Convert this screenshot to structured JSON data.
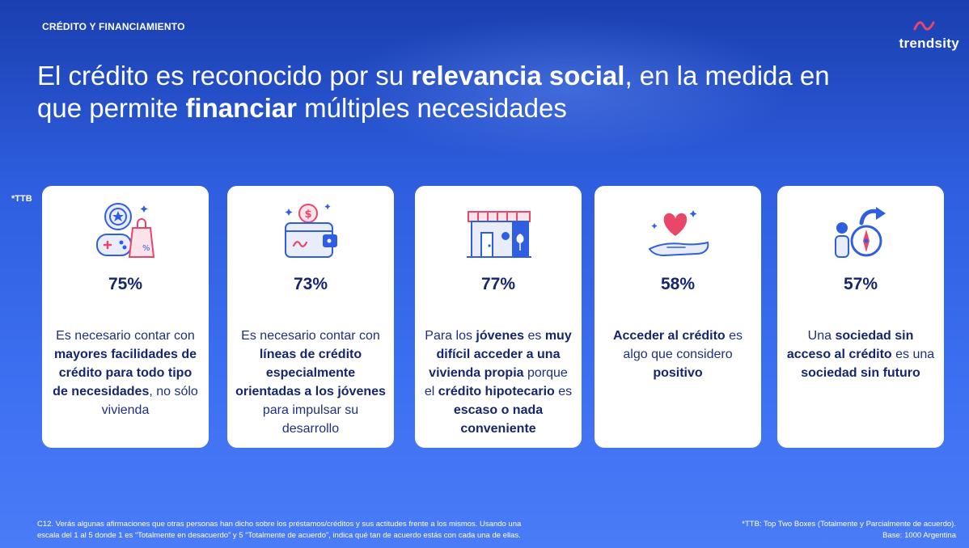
{
  "header": {
    "section_label": "CRÉDITO Y FINANCIAMIENTO",
    "brand": "trendsity",
    "headline_parts": [
      {
        "text": "El crédito es reconocido por su ",
        "bold": false
      },
      {
        "text": "relevancia social",
        "bold": true
      },
      {
        "text": ", en la medida en que permite ",
        "bold": false
      },
      {
        "text": "financiar",
        "bold": true
      },
      {
        "text": " múltiples necesidades",
        "bold": false
      }
    ]
  },
  "ttb_mark": "*TTB",
  "colors": {
    "background_top": "#1a3fb0",
    "background_bottom": "#4a7cf7",
    "card": "#ffffff",
    "text_dark": "#16266e",
    "icon_accent": "#e8476a",
    "icon_blue": "#2f5fe0"
  },
  "cards": [
    {
      "icon": "shopping-gaming-icon",
      "percent": "75%",
      "description": [
        {
          "text": "Es necesario contar con ",
          "bold": false
        },
        {
          "text": "mayores facilidades de crédito para todo tipo de necesidades",
          "bold": true
        },
        {
          "text": ", no sólo vivienda",
          "bold": false
        }
      ]
    },
    {
      "icon": "wallet-coin-icon",
      "percent": "73%",
      "description": [
        {
          "text": "Es necesario contar con ",
          "bold": false
        },
        {
          "text": "líneas de crédito especialmente orientadas a los jóvenes",
          "bold": true
        },
        {
          "text": " para impulsar su desarrollo",
          "bold": false
        }
      ]
    },
    {
      "icon": "house-store-icon",
      "percent": "77%",
      "description": [
        {
          "text": "Para los ",
          "bold": false
        },
        {
          "text": "jóvenes",
          "bold": true
        },
        {
          "text": " es ",
          "bold": false
        },
        {
          "text": "muy difícil acceder a una vivienda propia",
          "bold": true
        },
        {
          "text": " porque el ",
          "bold": false
        },
        {
          "text": "crédito hipotecario",
          "bold": true
        },
        {
          "text": " es ",
          "bold": false
        },
        {
          "text": "escaso o nada conveniente",
          "bold": true
        }
      ]
    },
    {
      "icon": "heart-hand-icon",
      "percent": "58%",
      "description": [
        {
          "text": "Acceder al crédito",
          "bold": true
        },
        {
          "text": " es algo que considero ",
          "bold": false
        },
        {
          "text": "positivo",
          "bold": true
        }
      ]
    },
    {
      "icon": "person-compass-icon",
      "percent": "57%",
      "description": [
        {
          "text": "Una ",
          "bold": false
        },
        {
          "text": "sociedad sin acceso al crédito",
          "bold": true
        },
        {
          "text": " es una ",
          "bold": false
        },
        {
          "text": "sociedad sin futuro",
          "bold": true
        }
      ]
    }
  ],
  "footer": {
    "question_line1": "C12. Verás algunas afirmaciones que otras personas han dicho sobre los préstamos/créditos y sus actitudes frente a los mismos. Usando una",
    "question_line2": "escala del 1 al 5 donde 1 es “Totalmente en desacuerdo” y 5 “Totalmente de acuerdo”, indica qué tan de acuerdo estás con cada una de ellas.",
    "note_line1": "*TTB: Top Two Boxes (Totalmente y Parcialmente de acuerdo).",
    "note_line2": "Base: 1000 Argentina"
  }
}
